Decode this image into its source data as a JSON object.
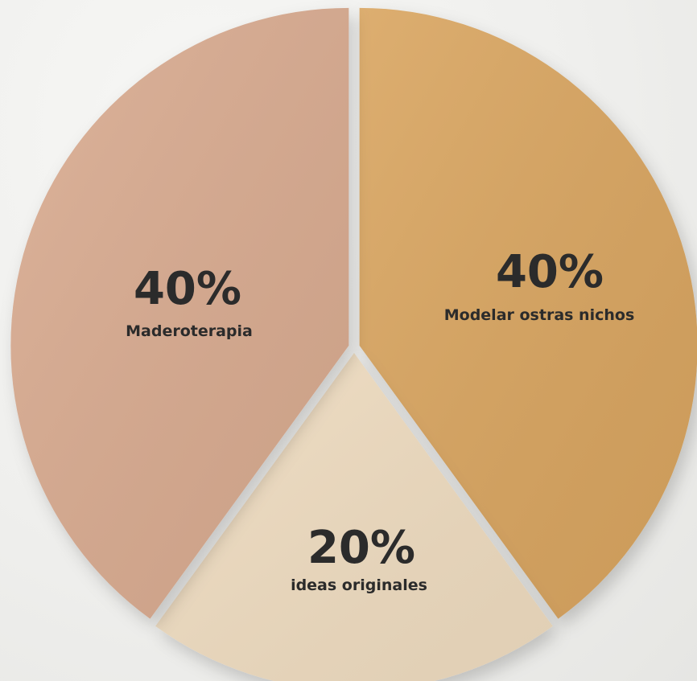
{
  "chart_data": {
    "type": "pie",
    "slices": [
      {
        "label": "Modelar ostras nichos",
        "value": 40,
        "display": "40%",
        "color": "#d9a560"
      },
      {
        "label": "ideas originales",
        "value": 20,
        "display": "20%",
        "color": "#efdcc0"
      },
      {
        "label": "Maderoterapia",
        "value": 40,
        "display": "40%",
        "color": "#d9ab90"
      }
    ]
  }
}
